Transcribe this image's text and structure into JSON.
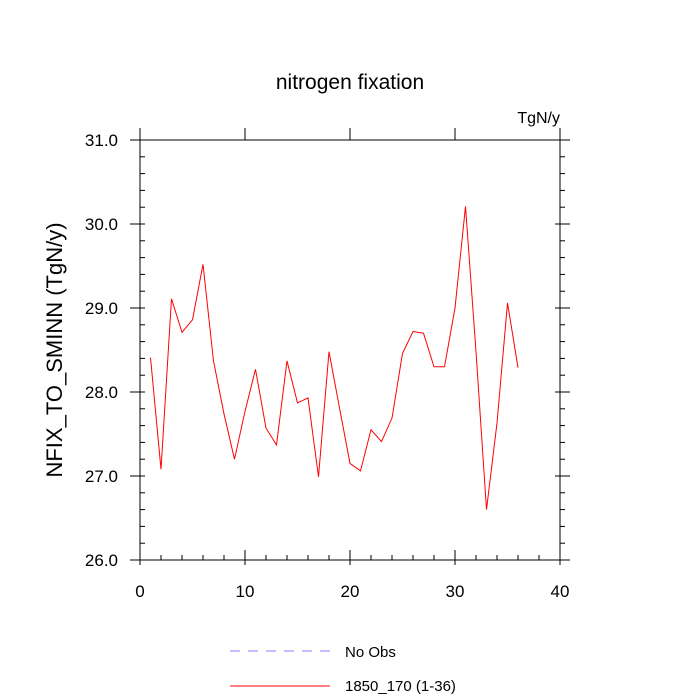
{
  "chart_data": {
    "type": "line",
    "title": "nitrogen fixation",
    "units": "TgN/y",
    "ylabel": "NFIX_TO_SMINN  (TgN/y)",
    "xlabel": "",
    "xlim": [
      0,
      40
    ],
    "ylim": [
      26.0,
      31.0
    ],
    "xticks": [
      0,
      10,
      20,
      30,
      40
    ],
    "yticks": [
      26.0,
      27.0,
      28.0,
      29.0,
      30.0,
      31.0
    ],
    "xtick_labels": [
      "0",
      "10",
      "20",
      "30",
      "40"
    ],
    "ytick_labels": [
      "26.0",
      "27.0",
      "28.0",
      "29.0",
      "30.0",
      "31.0"
    ],
    "grid": false,
    "colors": {
      "model": "#ff0000",
      "obs": "#8080ff"
    },
    "series": [
      {
        "name": "1850_170 (1-36)",
        "x": [
          1,
          2,
          3,
          4,
          5,
          6,
          7,
          8,
          9,
          10,
          11,
          12,
          13,
          14,
          15,
          16,
          17,
          18,
          19,
          20,
          21,
          22,
          23,
          24,
          25,
          26,
          27,
          28,
          29,
          30,
          31,
          32,
          33,
          34,
          35,
          36
        ],
        "values": [
          28.41,
          27.08,
          29.11,
          28.71,
          28.86,
          29.52,
          28.37,
          27.74,
          27.2,
          27.77,
          28.27,
          27.57,
          27.37,
          28.37,
          27.87,
          27.93,
          26.99,
          28.48,
          27.81,
          27.15,
          27.06,
          27.55,
          27.41,
          27.69,
          28.46,
          28.72,
          28.7,
          28.3,
          28.3,
          29.0,
          30.21,
          28.48,
          26.6,
          27.63,
          29.06,
          28.29
        ]
      }
    ],
    "legend": {
      "placement": "bottom",
      "entries": [
        {
          "label": "No Obs",
          "style": "dashed"
        },
        {
          "label": "1850_170 (1-36)",
          "style": "solid"
        }
      ]
    }
  }
}
